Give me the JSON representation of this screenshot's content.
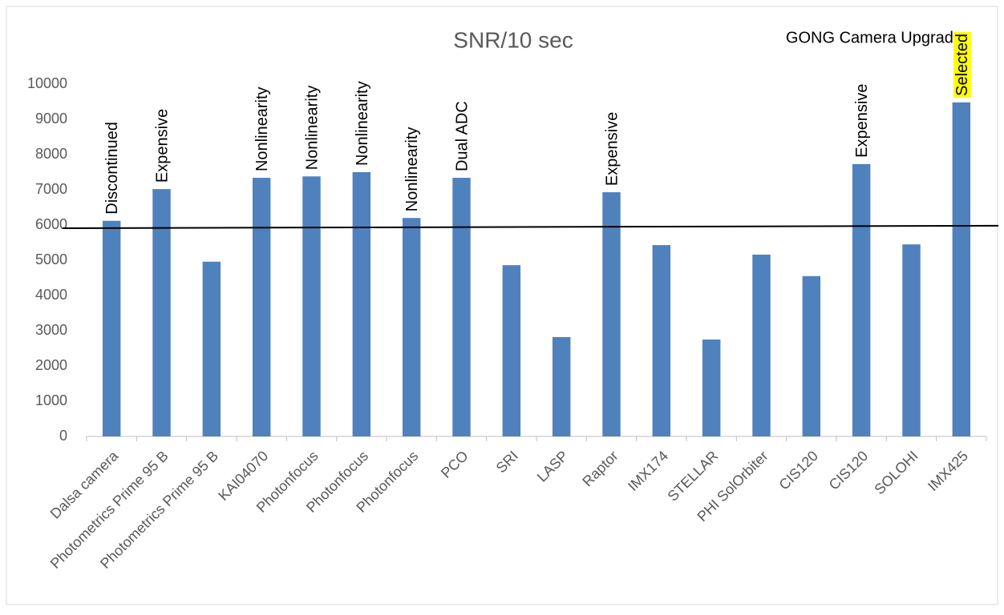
{
  "chart_data": {
    "type": "bar",
    "title": "SNR/10 sec",
    "subtitle": "GONG Camera Upgrade",
    "categories": [
      "Dalsa camera",
      "Photometrics Prime 95 B",
      "Photometrics Prime 95 B",
      "KAI04070",
      "Photonfocus",
      "Photonfocus",
      "Photonfocus",
      "PCO",
      "SRI",
      "LASP",
      "Raptor",
      "IMX174",
      "STELLAR",
      "PHI SolOrbiter",
      "CIS120",
      "CIS120",
      "SOLOHI",
      "IMX425"
    ],
    "values": [
      6120,
      7020,
      4960,
      7340,
      7380,
      7500,
      6200,
      7340,
      4860,
      2820,
      6930,
      5430,
      2750,
      5160,
      4550,
      7730,
      5450,
      9480
    ],
    "color": "#4f81bd",
    "annotations": [
      {
        "text": "Discontinued"
      },
      {
        "text": "Expensive"
      },
      null,
      {
        "text": "Nonlinearity"
      },
      {
        "text": "Nonlinearity"
      },
      {
        "text": "Nonlinearity"
      },
      {
        "text": "Nonlinearity"
      },
      {
        "text": "Dual ADC"
      },
      null,
      null,
      {
        "text": "Expensive"
      },
      null,
      null,
      null,
      null,
      {
        "text": "Expensive"
      },
      null,
      {
        "text": "Selected",
        "highlight": "#ffff00"
      }
    ],
    "reference_line": {
      "start": 5910,
      "end": 5980,
      "color": "#000000"
    },
    "ylim": [
      0,
      10000
    ],
    "yticks": [
      0,
      1000,
      2000,
      3000,
      4000,
      5000,
      6000,
      7000,
      8000,
      9000,
      10000
    ],
    "grid": false
  }
}
